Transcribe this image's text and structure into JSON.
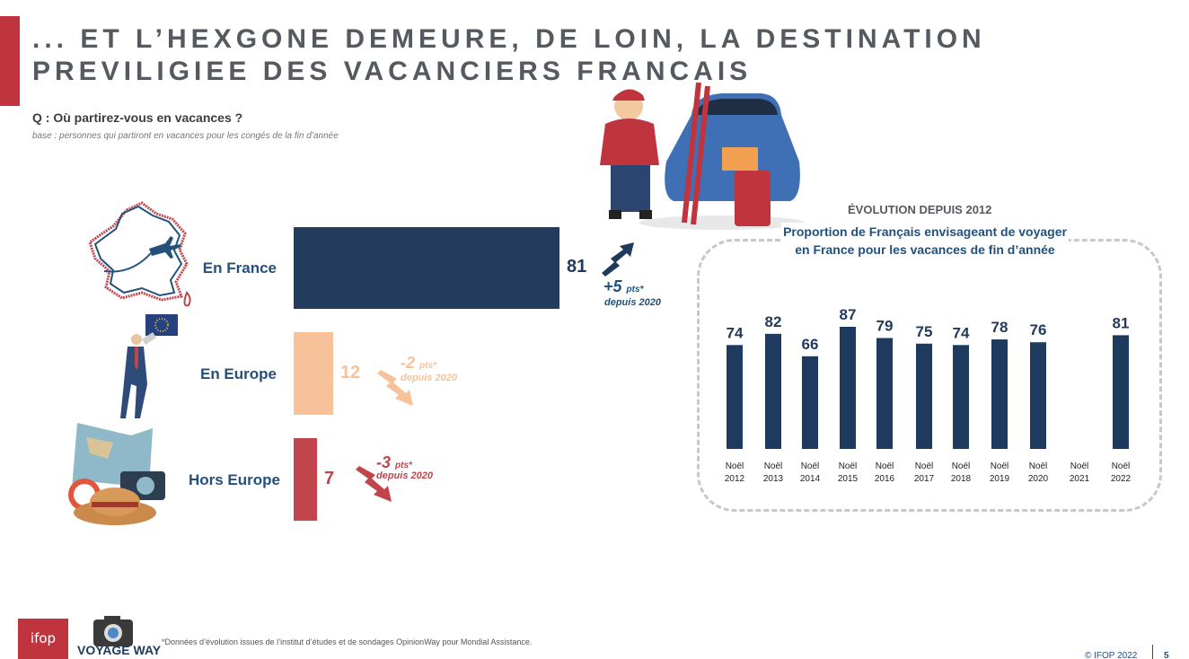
{
  "title_line1": "... ET L’HEXGONE DEMEURE, DE LOIN, LA DESTINATION",
  "title_line2": "PREVILIGIEE DES VACANCIERS FRANCAIS",
  "question": "Q : Où partirez-vous en vacances ?",
  "base": "base : personnes qui partiront en vacances pour les congés de la fin d’année",
  "colors": {
    "accent": "#c0353d",
    "navy": "#233b5c",
    "peach": "#f7c29a",
    "red": "#c0464c",
    "label_blue": "#24507c"
  },
  "destinations": [
    {
      "label": "En France",
      "value": "81",
      "delta": "+5",
      "delta_unit": "pts*",
      "delta_sub": "depuis 2020"
    },
    {
      "label": "En Europe",
      "value": "12",
      "delta": "-2",
      "delta_unit": "pts*",
      "delta_sub": "depuis 2020"
    },
    {
      "label": "Hors Europe",
      "value": "7",
      "delta": "-3",
      "delta_unit": "pts*",
      "delta_sub": "depuis 2020"
    }
  ],
  "evolution": {
    "title": "ÉVOLUTION DEPUIS 2012",
    "subtitle": "Proportion de Français envisageant de voyager en France pour les vacances de fin d’année"
  },
  "chart_data": [
    {
      "type": "bar",
      "orientation": "horizontal",
      "title": "",
      "categories": [
        "En France",
        "En Europe",
        "Hors Europe"
      ],
      "values": [
        81,
        12,
        7
      ],
      "colors": [
        "#233b5c",
        "#f7c29a",
        "#c0464c"
      ],
      "xlim": [
        0,
        100
      ]
    },
    {
      "type": "bar",
      "title": "Proportion de Français envisageant de voyager en France pour les vacances de fin d’année",
      "categories": [
        "Noël 2012",
        "Noël 2013",
        "Noël 2014",
        "Noël 2015",
        "Noël 2016",
        "Noël 2017",
        "Noël 2018",
        "Noël 2019",
        "Noël 2020",
        "Noël 2021",
        "Noël 2022"
      ],
      "values": [
        74,
        82,
        66,
        87,
        79,
        75,
        74,
        78,
        76,
        null,
        81
      ],
      "color": "#1f3a5f",
      "grid": false
    }
  ],
  "footnote": "*Données d’évolution issues de l’institut d’études et de sondages OpinionWay pour Mondial Assistance.",
  "logos": {
    "ifop": "ifop",
    "voyage_way": "VOYAGE WAY"
  },
  "copyright": "© IFOP 2022",
  "page_number": "5"
}
